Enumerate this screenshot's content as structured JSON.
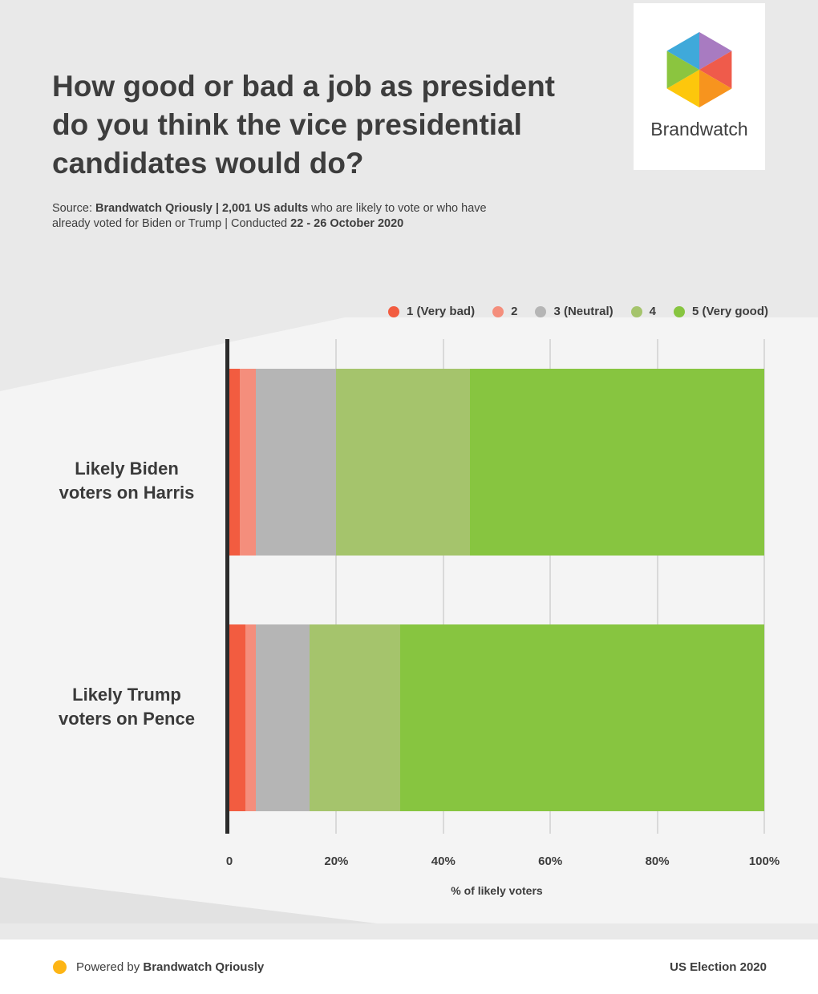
{
  "header": {
    "title": "How good or bad a job as president do you think the vice presidential candidates would do?"
  },
  "source": {
    "prefix": "Source: ",
    "bold1": "Brandwatch Qriously | 2,001 US adults",
    "middle": " who are likely to vote or who have already voted for Biden or Trump | Conducted ",
    "bold2": "22 - 26 October 2020"
  },
  "logo": {
    "brand": "Brandwatch"
  },
  "chart_data": {
    "type": "bar",
    "orientation": "horizontal",
    "stacked": true,
    "categories": [
      "Likely Biden voters on Harris",
      "Likely Trump voters on Pence"
    ],
    "categories_lines": [
      [
        "Likely Biden",
        "voters on Harris"
      ],
      [
        "Likely Trump",
        "voters on Pence"
      ]
    ],
    "series": [
      {
        "name": "1 (Very bad)",
        "color": "#f25c40",
        "values": [
          2,
          3
        ]
      },
      {
        "name": "2",
        "color": "#f48e7c",
        "values": [
          3,
          2
        ]
      },
      {
        "name": "3 (Neutral)",
        "color": "#b5b5b5",
        "values": [
          15,
          10
        ]
      },
      {
        "name": "4",
        "color": "#a5c46c",
        "values": [
          25,
          17
        ]
      },
      {
        "name": "5 (Very good)",
        "color": "#87c540",
        "values": [
          55,
          68
        ]
      }
    ],
    "xlabel": "% of likely voters",
    "x_ticks": [
      "0",
      "20%",
      "40%",
      "60%",
      "80%",
      "100%"
    ],
    "xlim": [
      0,
      100
    ],
    "grid": true,
    "legend_position": "top-right",
    "axis_color": "#2b2b2b",
    "gridline_color": "#d9d9d9"
  },
  "footer": {
    "powered_prefix": "Powered by ",
    "powered_bold": "Brandwatch Qriously",
    "right_label": "US Election 2020",
    "dot_color": "#fdb515"
  }
}
